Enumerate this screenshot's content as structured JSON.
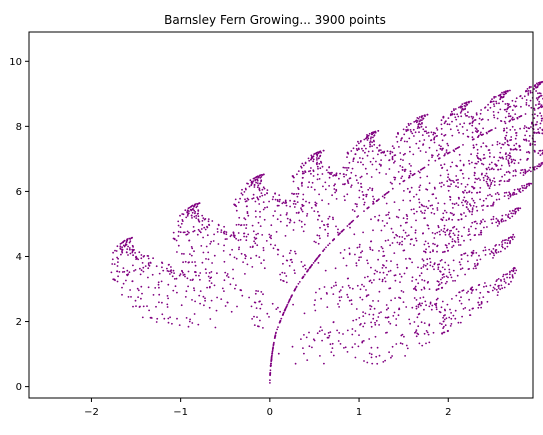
{
  "chart_data": {
    "type": "scatter",
    "title": "Barnsley Fern Growing... 3900 points",
    "xlabel": "",
    "ylabel": "",
    "xlim": [
      -2.7,
      2.95
    ],
    "ylim": [
      -0.35,
      10.9
    ],
    "xticks": [
      -2,
      -1,
      0,
      1,
      2
    ],
    "yticks": [
      0,
      2,
      4,
      6,
      8,
      10
    ],
    "grid": false,
    "series": [
      {
        "generator": "barnsley-fern",
        "point_count": 3900,
        "marker": "dot",
        "color": "#800080",
        "transform": "fern (x, y) plotted as (2 - y*0.225 ... ) rotated-leaning fern"
      }
    ]
  }
}
